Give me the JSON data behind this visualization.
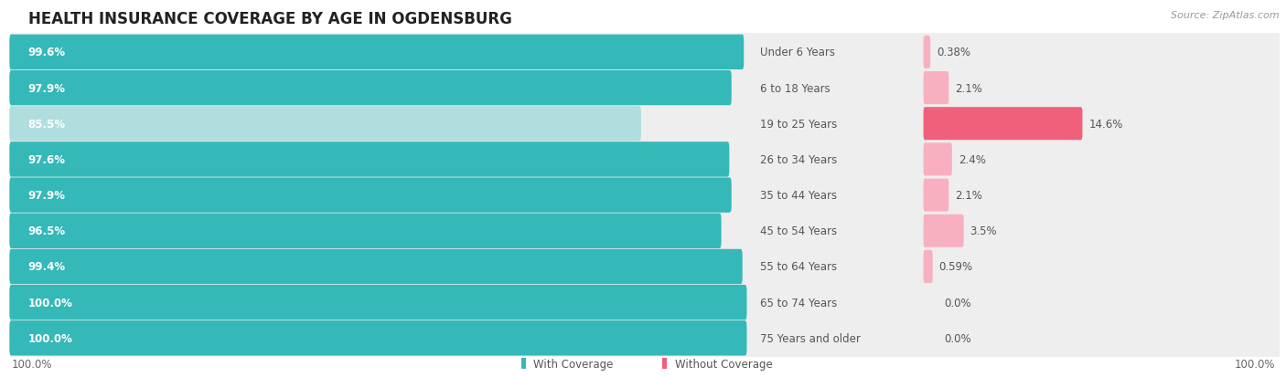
{
  "title": "HEALTH INSURANCE COVERAGE BY AGE IN OGDENSBURG",
  "source": "Source: ZipAtlas.com",
  "categories": [
    "Under 6 Years",
    "6 to 18 Years",
    "19 to 25 Years",
    "26 to 34 Years",
    "35 to 44 Years",
    "45 to 54 Years",
    "55 to 64 Years",
    "65 to 74 Years",
    "75 Years and older"
  ],
  "with_coverage": [
    99.6,
    97.9,
    85.5,
    97.6,
    97.9,
    96.5,
    99.4,
    100.0,
    100.0
  ],
  "without_coverage": [
    0.38,
    2.1,
    14.6,
    2.4,
    2.1,
    3.5,
    0.59,
    0.0,
    0.0
  ],
  "with_coverage_labels": [
    "99.6%",
    "97.9%",
    "85.5%",
    "97.6%",
    "97.9%",
    "96.5%",
    "99.4%",
    "100.0%",
    "100.0%"
  ],
  "without_coverage_labels": [
    "0.38%",
    "2.1%",
    "14.6%",
    "2.4%",
    "2.1%",
    "3.5%",
    "0.59%",
    "0.0%",
    "0.0%"
  ],
  "color_with": "#35b8b8",
  "color_with_light": "#b0dede",
  "color_without_dark": "#f0607a",
  "color_without_light": "#f8b0c0",
  "row_bg": "#eeeeee",
  "title_fontsize": 12,
  "label_fontsize": 8.5,
  "legend_fontsize": 8.5,
  "source_fontsize": 8,
  "background_color": "#ffffff"
}
